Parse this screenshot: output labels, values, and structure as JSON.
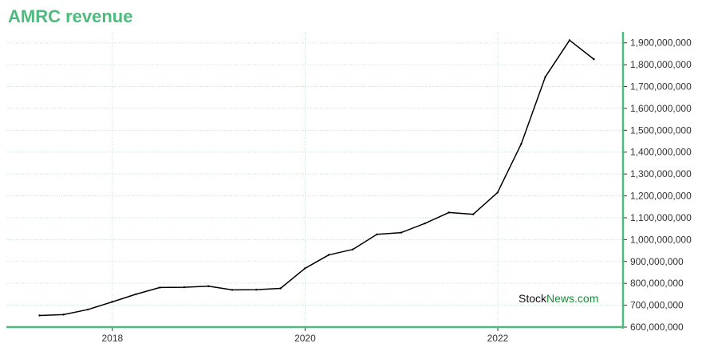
{
  "colors": {
    "accent": "#4dbb7e",
    "line": "#000000",
    "grid": "#bfe3cf",
    "watermark_stock": "#111111",
    "watermark_news": "#1a8a3a"
  },
  "chart_data": {
    "type": "line",
    "title": "AMRC revenue",
    "xlabel": "",
    "ylabel": "",
    "grid": true,
    "xlim": [
      2016.9,
      2023.3
    ],
    "ylim": [
      600000000,
      1950000000
    ],
    "x_ticks": [
      2018,
      2020,
      2022
    ],
    "x_tick_labels": [
      "2018",
      "2020",
      "2022"
    ],
    "y_ticks": [
      600000000,
      700000000,
      800000000,
      900000000,
      1000000000,
      1100000000,
      1200000000,
      1300000000,
      1400000000,
      1500000000,
      1600000000,
      1700000000,
      1800000000,
      1900000000
    ],
    "y_tick_labels": [
      "600,000,000",
      "700,000,000",
      "800,000,000",
      "900,000,000",
      "1,000,000,000",
      "1,100,000,000",
      "1,200,000,000",
      "1,300,000,000",
      "1,400,000,000",
      "1,500,000,000",
      "1,600,000,000",
      "1,700,000,000",
      "1,800,000,000",
      "1,900,000,000"
    ],
    "series": [
      {
        "x": [
          "2017-03-31",
          "2017-06-30",
          "2017-09-30",
          "2017-12-31",
          "2018-03-31",
          "2018-06-30",
          "2018-09-30",
          "2018-12-31",
          "2019-03-31",
          "2019-06-30",
          "2019-09-30",
          "2019-12-31",
          "2020-03-31",
          "2020-06-30",
          "2020-09-30",
          "2020-12-31",
          "2021-03-31",
          "2021-06-30",
          "2021-09-30",
          "2021-12-31",
          "2022-03-31",
          "2022-06-30",
          "2022-09-30",
          "2022-12-31"
        ],
        "values": [
          653000000,
          657000000,
          680000000,
          715000000,
          750000000,
          781000000,
          782000000,
          787000000,
          770000000,
          771000000,
          777000000,
          868000000,
          930000000,
          955000000,
          1024000000,
          1032000000,
          1074000000,
          1124000000,
          1116000000,
          1215000000,
          1438000000,
          1744000000,
          1912000000,
          1825000000
        ]
      }
    ]
  },
  "watermark": {
    "stock": "Stock",
    "news": "News",
    "com": ".com"
  }
}
